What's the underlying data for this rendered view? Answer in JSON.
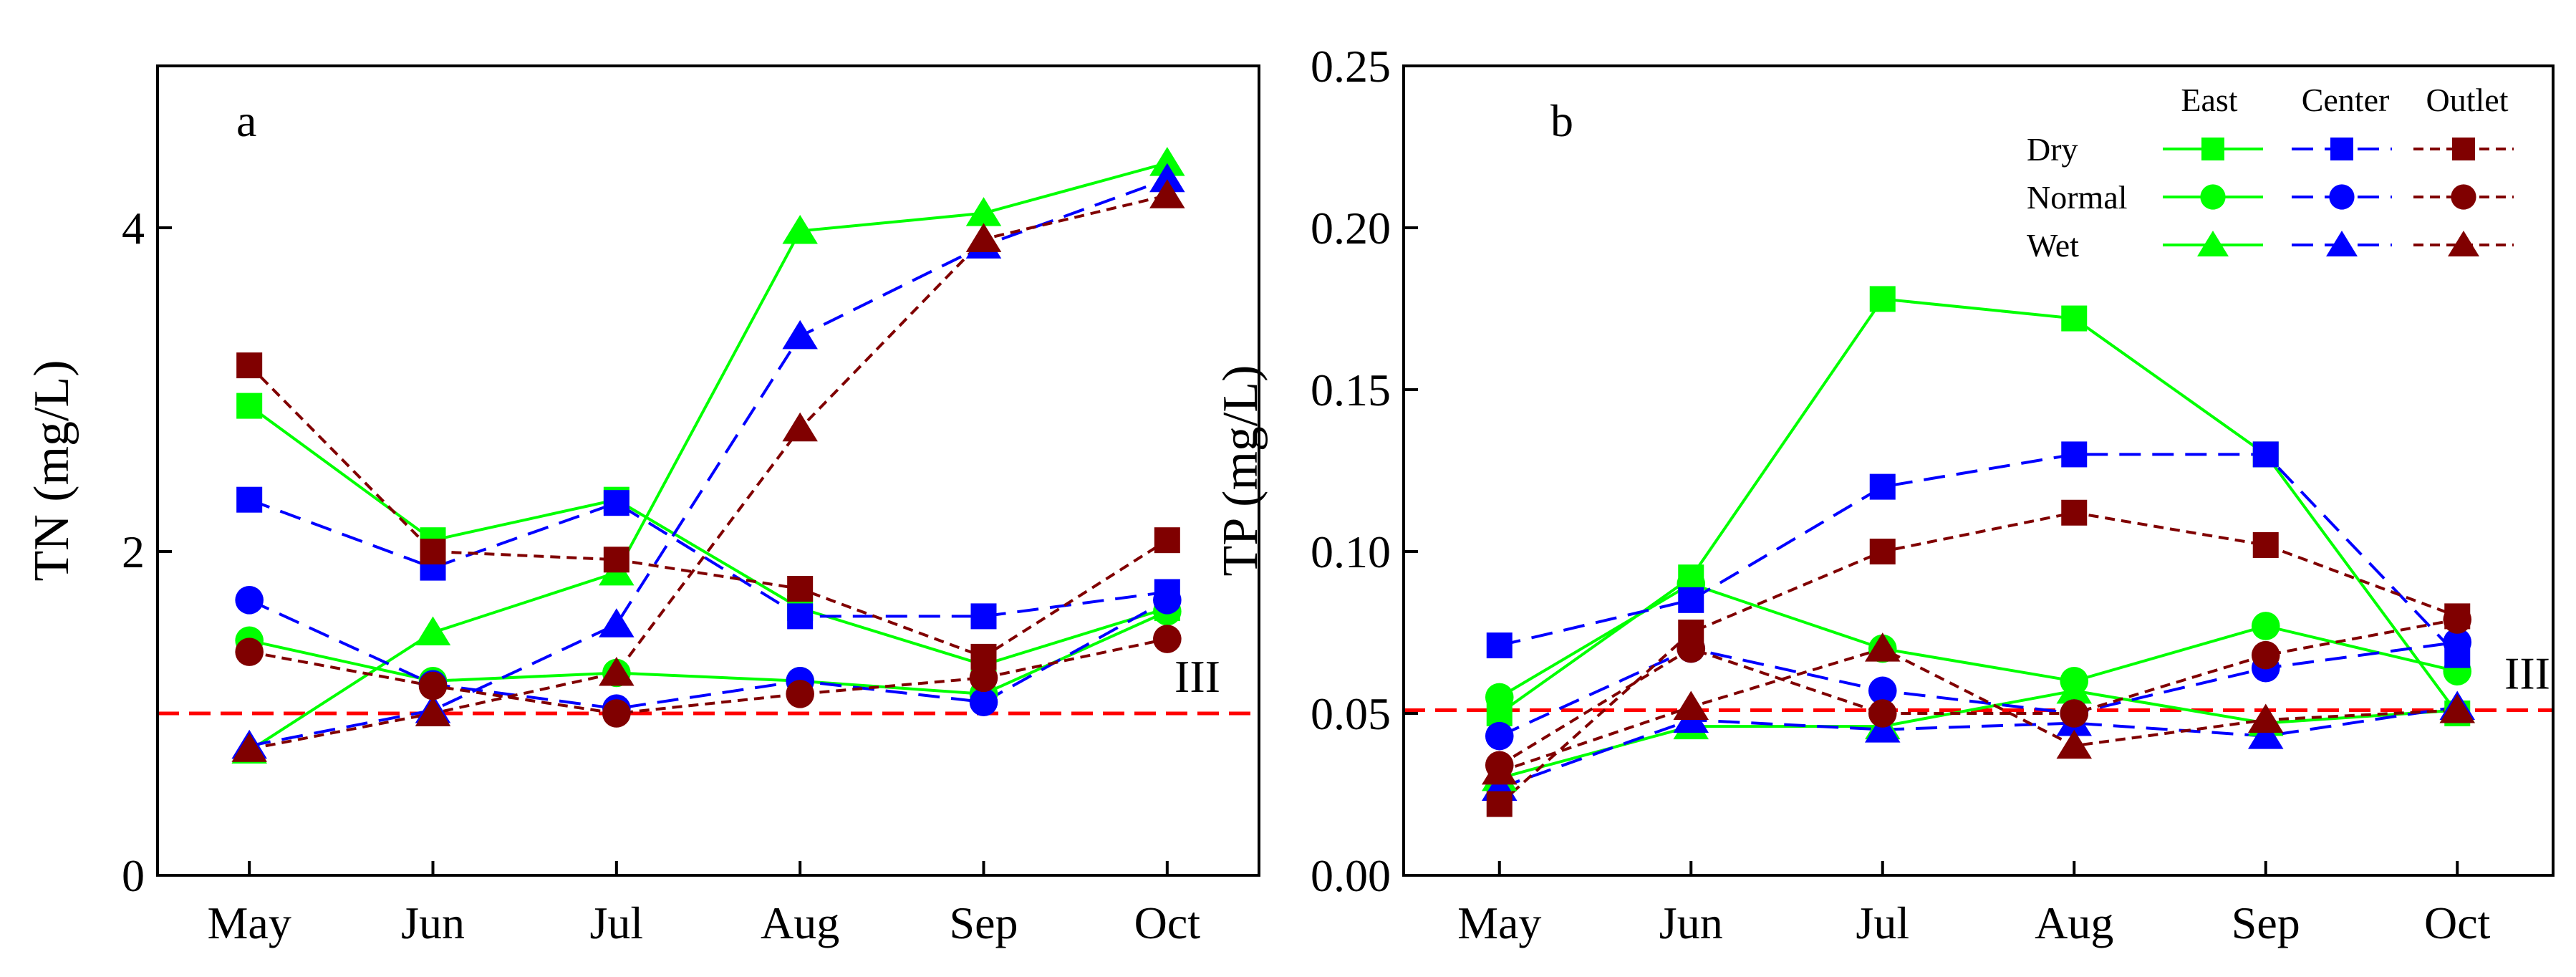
{
  "colors": {
    "east": "#00ff00",
    "center": "#0000ff",
    "outlet": "#800000",
    "reference": "#ff0000",
    "axis": "#000000"
  },
  "legend": {
    "columns": [
      "East",
      "Center",
      "Outlet"
    ],
    "rows": [
      "Dry",
      "Normal",
      "Wet"
    ]
  },
  "chart_data": [
    {
      "type": "line",
      "panel_label": "a",
      "ylabel": "TN (mg/L)",
      "xlabel": "",
      "categories": [
        "May",
        "Jun",
        "Jul",
        "Aug",
        "Sep",
        "Oct"
      ],
      "ylim": [
        0,
        5
      ],
      "yticks": [
        0,
        2,
        4
      ],
      "ytick_labels": [
        "0",
        "2",
        "4"
      ],
      "reference_line": {
        "value": 1.0,
        "label": "III"
      },
      "series": [
        {
          "name": "East Dry",
          "site": "East",
          "condition": "Dry",
          "marker": "square",
          "values": [
            2.9,
            2.07,
            2.32,
            1.65,
            1.3,
            1.65
          ]
        },
        {
          "name": "East Normal",
          "site": "East",
          "condition": "Normal",
          "marker": "circle",
          "values": [
            1.45,
            1.2,
            1.25,
            1.2,
            1.12,
            1.63
          ]
        },
        {
          "name": "East Wet",
          "site": "East",
          "condition": "Wet",
          "marker": "triangle",
          "values": [
            0.77,
            1.5,
            1.87,
            3.98,
            4.09,
            4.4
          ]
        },
        {
          "name": "Center Dry",
          "site": "Center",
          "condition": "Dry",
          "marker": "square",
          "values": [
            2.32,
            1.9,
            2.3,
            1.6,
            1.6,
            1.75
          ]
        },
        {
          "name": "Center Normal",
          "site": "Center",
          "condition": "Normal",
          "marker": "circle",
          "values": [
            1.7,
            1.18,
            1.03,
            1.2,
            1.07,
            1.7
          ]
        },
        {
          "name": "Center Wet",
          "site": "Center",
          "condition": "Wet",
          "marker": "triangle",
          "values": [
            0.8,
            1.02,
            1.55,
            3.33,
            3.89,
            4.3
          ]
        },
        {
          "name": "Outlet Dry",
          "site": "Outlet",
          "condition": "Dry",
          "marker": "square",
          "values": [
            3.15,
            2.0,
            1.95,
            1.77,
            1.35,
            2.07
          ]
        },
        {
          "name": "Outlet Normal",
          "site": "Outlet",
          "condition": "Normal",
          "marker": "circle",
          "values": [
            1.38,
            1.17,
            1.0,
            1.12,
            1.22,
            1.46
          ]
        },
        {
          "name": "Outlet Wet",
          "site": "Outlet",
          "condition": "Wet",
          "marker": "triangle",
          "values": [
            0.78,
            1.0,
            1.25,
            2.76,
            3.93,
            4.2
          ]
        }
      ]
    },
    {
      "type": "line",
      "panel_label": "b",
      "ylabel": "TP (mg/L)",
      "xlabel": "",
      "categories": [
        "May",
        "Jun",
        "Jul",
        "Aug",
        "Sep",
        "Oct"
      ],
      "ylim": [
        0,
        0.25
      ],
      "yticks": [
        0,
        0.05,
        0.1,
        0.15,
        0.2,
        0.25
      ],
      "ytick_labels": [
        "0.00",
        "0.05",
        "0.10",
        "0.15",
        "0.20",
        "0.25"
      ],
      "reference_line": {
        "value": 0.051,
        "label": "III"
      },
      "series": [
        {
          "name": "East Dry",
          "site": "East",
          "condition": "Dry",
          "marker": "square",
          "values": [
            0.05,
            0.092,
            0.178,
            0.172,
            0.13,
            0.05
          ]
        },
        {
          "name": "East Normal",
          "site": "East",
          "condition": "Normal",
          "marker": "circle",
          "values": [
            0.055,
            0.09,
            0.07,
            0.06,
            0.077,
            0.063
          ]
        },
        {
          "name": "East Wet",
          "site": "East",
          "condition": "Wet",
          "marker": "triangle",
          "values": [
            0.03,
            0.046,
            0.046,
            0.057,
            0.047,
            0.051
          ]
        },
        {
          "name": "Center Dry",
          "site": "Center",
          "condition": "Dry",
          "marker": "square",
          "values": [
            0.071,
            0.085,
            0.12,
            0.13,
            0.13,
            0.068
          ]
        },
        {
          "name": "Center Normal",
          "site": "Center",
          "condition": "Normal",
          "marker": "circle",
          "values": [
            0.043,
            0.07,
            0.057,
            0.05,
            0.064,
            0.072
          ]
        },
        {
          "name": "Center Wet",
          "site": "Center",
          "condition": "Wet",
          "marker": "triangle",
          "values": [
            0.027,
            0.048,
            0.045,
            0.047,
            0.043,
            0.052
          ]
        },
        {
          "name": "Outlet Dry",
          "site": "Outlet",
          "condition": "Dry",
          "marker": "square",
          "values": [
            0.022,
            0.075,
            0.1,
            0.112,
            0.102,
            0.08
          ]
        },
        {
          "name": "Outlet Normal",
          "site": "Outlet",
          "condition": "Normal",
          "marker": "circle",
          "values": [
            0.034,
            0.07,
            0.05,
            0.05,
            0.068,
            0.079
          ]
        },
        {
          "name": "Outlet Wet",
          "site": "Outlet",
          "condition": "Wet",
          "marker": "triangle",
          "values": [
            0.032,
            0.052,
            0.07,
            0.04,
            0.048,
            0.051
          ]
        }
      ]
    }
  ]
}
